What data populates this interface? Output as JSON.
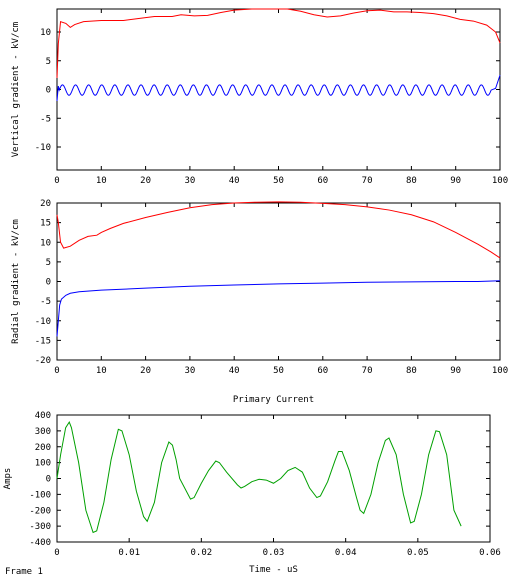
{
  "frame_label": "Frame 1",
  "chart_data": [
    {
      "type": "line",
      "title": "",
      "xlabel": "",
      "ylabel": "Vertical gradient - kV/cm",
      "xlim": [
        0,
        100
      ],
      "ylim": [
        -14,
        14
      ],
      "xticks": [
        0,
        10,
        20,
        30,
        40,
        50,
        60,
        70,
        80,
        90,
        100
      ],
      "yticks": [
        -10,
        -5,
        0,
        5,
        10
      ],
      "grid": false,
      "series": [
        {
          "color": "#ff0000",
          "points": [
            [
              0,
              2
            ],
            [
              0.3,
              8
            ],
            [
              0.8,
              11.8
            ],
            [
              2,
              11.5
            ],
            [
              3,
              10.8
            ],
            [
              4,
              11.3
            ],
            [
              6,
              11.8
            ],
            [
              10,
              12
            ],
            [
              15,
              12
            ],
            [
              18,
              12.3
            ],
            [
              22,
              12.7
            ],
            [
              26,
              12.7
            ],
            [
              28,
              13
            ],
            [
              31,
              12.8
            ],
            [
              34,
              12.9
            ],
            [
              37,
              13.4
            ],
            [
              40,
              13.8
            ],
            [
              44,
              14
            ],
            [
              48,
              14
            ],
            [
              52,
              14
            ],
            [
              55,
              13.6
            ],
            [
              58,
              13
            ],
            [
              61,
              12.6
            ],
            [
              64,
              12.8
            ],
            [
              67,
              13.3
            ],
            [
              70,
              13.7
            ],
            [
              73,
              13.8
            ],
            [
              76,
              13.5
            ],
            [
              79,
              13.5
            ],
            [
              82,
              13.4
            ],
            [
              85,
              13.2
            ],
            [
              88,
              12.8
            ],
            [
              91,
              12.2
            ],
            [
              94,
              11.9
            ],
            [
              97,
              11.2
            ],
            [
              99,
              10
            ],
            [
              100,
              8.1
            ]
          ]
        },
        {
          "color": "#0000ff",
          "wave": {
            "start": 0.5,
            "end": 98,
            "cycles": 33,
            "amplitude": 0.9,
            "center": -0.1
          },
          "points": [
            [
              0,
              -2
            ],
            [
              0.3,
              0.6
            ],
            [
              0.8,
              0.6
            ],
            [
              1.5,
              0.1
            ],
            [
              97.5,
              -1.3
            ],
            [
              98,
              -1.6
            ],
            [
              99,
              0.2
            ],
            [
              100,
              2.5
            ]
          ]
        }
      ]
    },
    {
      "type": "line",
      "title": "",
      "xlabel": "",
      "ylabel": "Radial gradient - kV/cm",
      "xlim": [
        0,
        100
      ],
      "ylim": [
        -20,
        20
      ],
      "xticks": [
        0,
        10,
        20,
        30,
        40,
        50,
        60,
        70,
        80,
        90,
        100
      ],
      "yticks": [
        -20,
        -15,
        -10,
        -5,
        0,
        5,
        10,
        15,
        20
      ],
      "grid": false,
      "series": [
        {
          "color": "#ff0000",
          "points": [
            [
              0,
              17
            ],
            [
              0.3,
              15
            ],
            [
              0.8,
              10
            ],
            [
              1.5,
              8.5
            ],
            [
              3,
              9
            ],
            [
              5,
              10.5
            ],
            [
              7,
              11.5
            ],
            [
              9,
              11.8
            ],
            [
              10,
              12.5
            ],
            [
              12,
              13.5
            ],
            [
              15,
              14.8
            ],
            [
              20,
              16.3
            ],
            [
              25,
              17.6
            ],
            [
              30,
              18.8
            ],
            [
              35,
              19.6
            ],
            [
              40,
              20
            ],
            [
              45,
              20.2
            ],
            [
              50,
              20.3
            ],
            [
              55,
              20.2
            ],
            [
              60,
              19.9
            ],
            [
              65,
              19.6
            ],
            [
              70,
              19
            ],
            [
              75,
              18.2
            ],
            [
              80,
              17
            ],
            [
              85,
              15.2
            ],
            [
              90,
              12.5
            ],
            [
              95,
              9.5
            ],
            [
              98,
              7.5
            ],
            [
              100,
              6
            ]
          ]
        },
        {
          "color": "#0000ff",
          "points": [
            [
              0,
              -14
            ],
            [
              0.3,
              -10
            ],
            [
              0.6,
              -6
            ],
            [
              1,
              -4.5
            ],
            [
              2,
              -3.5
            ],
            [
              3,
              -3
            ],
            [
              5,
              -2.6
            ],
            [
              10,
              -2.2
            ],
            [
              20,
              -1.7
            ],
            [
              30,
              -1.2
            ],
            [
              40,
              -0.9
            ],
            [
              50,
              -0.6
            ],
            [
              60,
              -0.4
            ],
            [
              70,
              -0.2
            ],
            [
              80,
              -0.1
            ],
            [
              90,
              0
            ],
            [
              95,
              0
            ],
            [
              100,
              0.2
            ]
          ]
        }
      ]
    },
    {
      "type": "line",
      "title": "Primary Current",
      "xlabel": "Time - uS",
      "ylabel": "Amps",
      "xlim": [
        0,
        0.06
      ],
      "ylim": [
        -400,
        400
      ],
      "xticks": [
        0,
        0.01,
        0.02,
        0.03,
        0.04,
        0.05,
        0.06
      ],
      "yticks": [
        -400,
        -300,
        -200,
        -100,
        0,
        100,
        200,
        300,
        400
      ],
      "grid": false,
      "series": [
        {
          "color": "#00a000",
          "points": [
            [
              0,
              0
            ],
            [
              0.0005,
              150
            ],
            [
              0.0012,
              320
            ],
            [
              0.0017,
              355
            ],
            [
              0.002,
              320
            ],
            [
              0.003,
              100
            ],
            [
              0.004,
              -200
            ],
            [
              0.005,
              -340
            ],
            [
              0.0055,
              -330
            ],
            [
              0.0065,
              -150
            ],
            [
              0.0075,
              120
            ],
            [
              0.0085,
              310
            ],
            [
              0.009,
              300
            ],
            [
              0.01,
              150
            ],
            [
              0.011,
              -80
            ],
            [
              0.012,
              -240
            ],
            [
              0.0125,
              -270
            ],
            [
              0.0135,
              -150
            ],
            [
              0.0145,
              100
            ],
            [
              0.0155,
              230
            ],
            [
              0.016,
              210
            ],
            [
              0.0165,
              120
            ],
            [
              0.017,
              0
            ],
            [
              0.0185,
              -130
            ],
            [
              0.019,
              -120
            ],
            [
              0.02,
              -30
            ],
            [
              0.021,
              50
            ],
            [
              0.022,
              110
            ],
            [
              0.0225,
              100
            ],
            [
              0.0235,
              40
            ],
            [
              0.025,
              -40
            ],
            [
              0.0255,
              -60
            ],
            [
              0.026,
              -50
            ],
            [
              0.027,
              -20
            ],
            [
              0.028,
              -5
            ],
            [
              0.029,
              -10
            ],
            [
              0.03,
              -30
            ],
            [
              0.031,
              0
            ],
            [
              0.032,
              50
            ],
            [
              0.033,
              70
            ],
            [
              0.034,
              40
            ],
            [
              0.035,
              -60
            ],
            [
              0.036,
              -120
            ],
            [
              0.0365,
              -110
            ],
            [
              0.0375,
              -20
            ],
            [
              0.0385,
              110
            ],
            [
              0.039,
              170
            ],
            [
              0.0395,
              170
            ],
            [
              0.0405,
              50
            ],
            [
              0.0415,
              -120
            ],
            [
              0.042,
              -200
            ],
            [
              0.0425,
              -220
            ],
            [
              0.0435,
              -100
            ],
            [
              0.0445,
              100
            ],
            [
              0.0455,
              240
            ],
            [
              0.046,
              255
            ],
            [
              0.047,
              150
            ],
            [
              0.048,
              -100
            ],
            [
              0.049,
              -280
            ],
            [
              0.0495,
              -270
            ],
            [
              0.0505,
              -100
            ],
            [
              0.0515,
              150
            ],
            [
              0.0525,
              300
            ],
            [
              0.053,
              295
            ],
            [
              0.054,
              150
            ],
            [
              0.055,
              -200
            ],
            [
              0.056,
              -300
            ]
          ]
        }
      ]
    }
  ]
}
